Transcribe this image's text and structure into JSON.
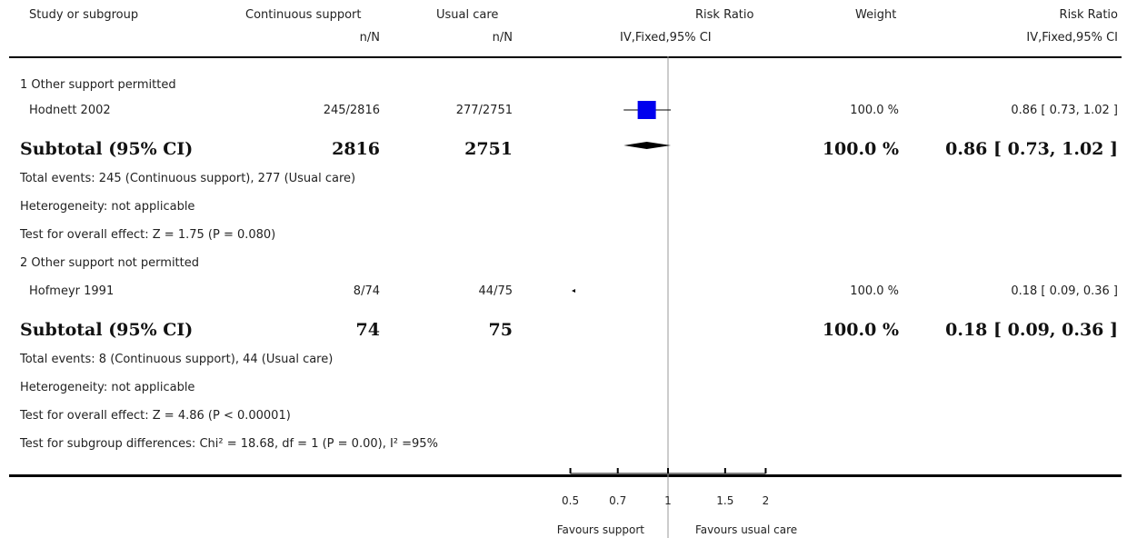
{
  "header": {
    "study_col": "Study or subgroup",
    "group1_col": "Continuous support",
    "group2_col": "Usual care",
    "effect_col": "Risk Ratio",
    "weight_col": "Weight",
    "effect_ci_col": "Risk Ratio",
    "group1_sub": "n/N",
    "group2_sub": "n/N",
    "effect_sub": "IV,Fixed,95% CI",
    "effect_ci_sub": "IV,Fixed,95% CI"
  },
  "subgroups": [
    {
      "label": "1 Other support permitted",
      "study": {
        "name": "Hodnett 2002",
        "g1": "245/2816",
        "g2": "277/2751",
        "weight": "100.0 %",
        "ci_text": "0.86 [ 0.73, 1.02 ]"
      },
      "subtotal": {
        "label": "Subtotal (95% CI)",
        "g1": "2816",
        "g2": "2751",
        "weight": "100.0 %",
        "ci_text": "0.86 [ 0.73, 1.02 ]"
      },
      "notes": [
        "Total events: 245 (Continuous support), 277 (Usual care)",
        "Heterogeneity: not applicable",
        "Test for overall effect: Z = 1.75 (P = 0.080)"
      ]
    },
    {
      "label": "2 Other support not permitted",
      "study": {
        "name": "Hofmeyr 1991",
        "g1": "8/74",
        "g2": "44/75",
        "weight": "100.0 %",
        "ci_text": "0.18 [ 0.09, 0.36 ]"
      },
      "subtotal": {
        "label": "Subtotal (95% CI)",
        "g1": "74",
        "g2": "75",
        "weight": "100.0 %",
        "ci_text": "0.18 [ 0.09, 0.36 ]"
      },
      "notes": [
        "Total events: 8 (Continuous support), 44 (Usual care)",
        "Heterogeneity: not applicable",
        "Test for overall effect: Z = 4.86 (P < 0.00001)"
      ]
    }
  ],
  "subgroup_test": "Test for subgroup differences: Chi² = 18.68, df = 1 (P = 0.00), I² =95%",
  "footer": {
    "favours_left": "Favours support",
    "favours_right": "Favours usual care"
  },
  "colors": {
    "study_marker": "#0000ee",
    "diamond": "#000000",
    "rule": "#000000"
  },
  "chart_data": {
    "type": "forest",
    "scale": "log",
    "null_value": 1,
    "xlim": [
      0.5,
      2
    ],
    "ticks": [
      0.5,
      0.7,
      1,
      1.5,
      2
    ],
    "tick_labels": [
      "0.5",
      "0.7",
      "1",
      "1.5",
      "2"
    ],
    "studies": [
      {
        "name": "Hodnett 2002",
        "subgroup": "1 Other support permitted",
        "rr": 0.86,
        "lower": 0.73,
        "upper": 1.02,
        "weight": 100.0
      },
      {
        "name": "Hofmeyr 1991",
        "subgroup": "2 Other support not permitted",
        "rr": 0.18,
        "lower": 0.09,
        "upper": 0.36,
        "weight": 100.0
      }
    ],
    "subtotals": [
      {
        "label": "Subtotal (95% CI)",
        "subgroup": "1 Other support permitted",
        "rr": 0.86,
        "lower": 0.73,
        "upper": 1.02
      },
      {
        "label": "Subtotal (95% CI)",
        "subgroup": "2 Other support not permitted",
        "rr": 0.18,
        "lower": 0.09,
        "upper": 0.36
      }
    ]
  }
}
